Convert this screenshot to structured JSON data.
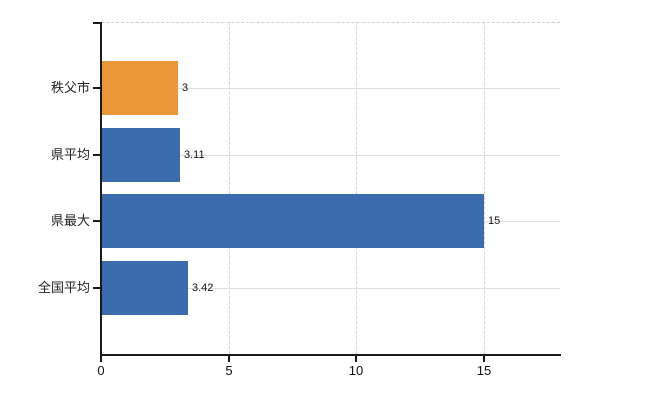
{
  "chart_data": {
    "type": "bar",
    "orientation": "horizontal",
    "categories": [
      "秩父市",
      "県平均",
      "県最大",
      "全国平均"
    ],
    "values": [
      3,
      3.11,
      15,
      3.42
    ],
    "value_labels": [
      "3",
      "3.11",
      "15",
      "3.42"
    ],
    "bar_colors": [
      "#eb9637",
      "#3a6cae",
      "#3a6cae",
      "#3a6cae"
    ],
    "highlight_category": "秩父市",
    "x_ticks": [
      0,
      5,
      10,
      15
    ],
    "x_tick_labels": [
      "0",
      "5",
      "10",
      "15"
    ],
    "xlim": [
      0,
      18
    ],
    "grid": true,
    "legend": "none"
  },
  "colors": {
    "bar_default": "#3a6cae",
    "bar_highlight": "#eb9637",
    "axis": "#1a1a1a",
    "gridline_horizontal": "#d9e0d9",
    "gridline_vertical": "#d3d0da",
    "plot_border_top": "#cfccd6",
    "background": "#ffffff",
    "label_text": "#222222"
  }
}
